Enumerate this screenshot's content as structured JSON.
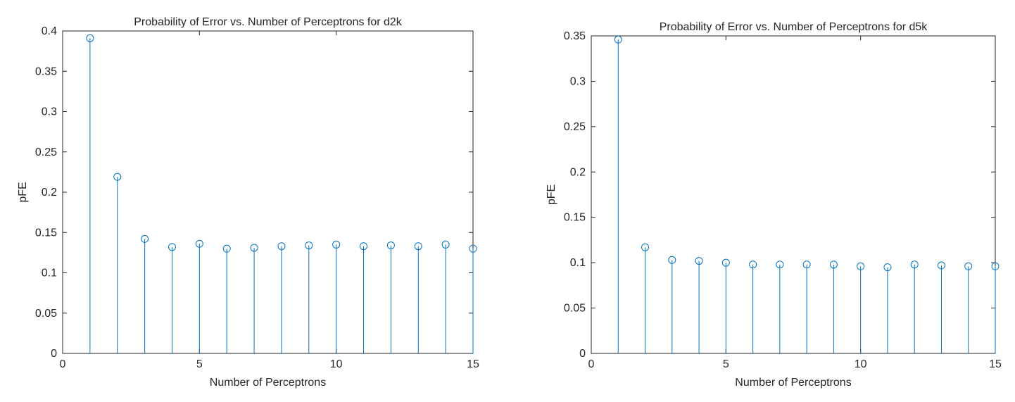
{
  "chart_data": [
    {
      "type": "stem",
      "title": "Probability of Error vs. Number of Perceptrons for d2k",
      "xlabel": "Number of Perceptrons",
      "ylabel": "pFE",
      "xlim": [
        0,
        15
      ],
      "ylim": [
        0,
        0.4
      ],
      "xticks": [
        0,
        5,
        10,
        15
      ],
      "yticks": [
        0,
        0.05,
        0.1,
        0.15,
        0.2,
        0.25,
        0.3,
        0.35,
        0.4
      ],
      "ytick_labels": [
        "0",
        "0.05",
        "0.1",
        "0.15",
        "0.2",
        "0.25",
        "0.3",
        "0.35",
        "0.4"
      ],
      "color": "#0072BD",
      "grid": false,
      "x": [
        1,
        2,
        3,
        4,
        5,
        6,
        7,
        8,
        9,
        10,
        11,
        12,
        13,
        14,
        15
      ],
      "values": [
        0.391,
        0.219,
        0.142,
        0.132,
        0.136,
        0.13,
        0.131,
        0.133,
        0.134,
        0.135,
        0.133,
        0.134,
        0.133,
        0.135,
        0.13
      ]
    },
    {
      "type": "stem",
      "title": "Probability of Error vs. Number of Perceptrons for d5k",
      "xlabel": "Number of Perceptrons",
      "ylabel": "pFE",
      "xlim": [
        0,
        15
      ],
      "ylim": [
        0,
        0.35
      ],
      "xticks": [
        0,
        5,
        10,
        15
      ],
      "yticks": [
        0,
        0.05,
        0.1,
        0.15,
        0.2,
        0.25,
        0.3,
        0.35
      ],
      "ytick_labels": [
        "0",
        "0.05",
        "0.1",
        "0.15",
        "0.2",
        "0.25",
        "0.3",
        "0.35"
      ],
      "color": "#0072BD",
      "grid": false,
      "x": [
        1,
        2,
        3,
        4,
        5,
        6,
        7,
        8,
        9,
        10,
        11,
        12,
        13,
        14,
        15
      ],
      "values": [
        0.346,
        0.117,
        0.103,
        0.102,
        0.1,
        0.098,
        0.098,
        0.098,
        0.098,
        0.096,
        0.095,
        0.098,
        0.097,
        0.096,
        0.096
      ]
    }
  ]
}
